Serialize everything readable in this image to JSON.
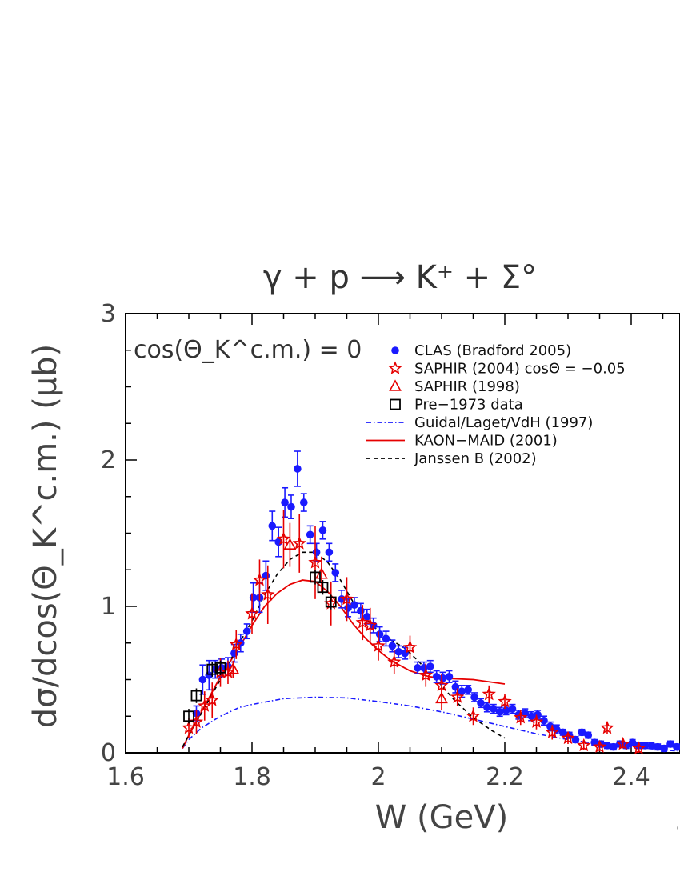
{
  "chart_data": {
    "type": "scatter",
    "title": "γ + p ⟶ K⁺ + Σ°",
    "xlabel": "W (GeV)",
    "ylabel": "dσ/dcos(Θ_K^c.m.) (μb)",
    "xlim": [
      1.6,
      2.48
    ],
    "ylim": [
      0,
      3
    ],
    "x_ticks": [
      1.6,
      1.8,
      2.0,
      2.2,
      2.4
    ],
    "x_tick_labels": [
      "1.6",
      "1.8",
      "2",
      "2.2",
      "2.4"
    ],
    "y_ticks": [
      0,
      1,
      2,
      3
    ],
    "y_tick_labels": [
      "0",
      "1",
      "2",
      "3"
    ],
    "annotation": "cos(Θ_K^c.m.) = 0",
    "legend_position": "top-right",
    "series": [
      {
        "name": "CLAS (Bradford 2005)",
        "marker": "filled-circle",
        "color": "#1a1aff",
        "points": [
          [
            1.712,
            0.27,
            0.05
          ],
          [
            1.722,
            0.5,
            0.1
          ],
          [
            1.732,
            0.53,
            0.1
          ],
          [
            1.742,
            0.57,
            0.06
          ],
          [
            1.752,
            0.58,
            0.06
          ],
          [
            1.762,
            0.59,
            0.06
          ],
          [
            1.772,
            0.68,
            0.06
          ],
          [
            1.782,
            0.75,
            0.06
          ],
          [
            1.792,
            0.83,
            0.05
          ],
          [
            1.802,
            1.06,
            0.1
          ],
          [
            1.812,
            1.06,
            0.1
          ],
          [
            1.822,
            1.21,
            0.1
          ],
          [
            1.832,
            1.55,
            0.1
          ],
          [
            1.842,
            1.44,
            0.1
          ],
          [
            1.852,
            1.71,
            0.1
          ],
          [
            1.862,
            1.68,
            0.08
          ],
          [
            1.872,
            1.94,
            0.12
          ],
          [
            1.882,
            1.71,
            0.06
          ],
          [
            1.892,
            1.49,
            0.06
          ],
          [
            1.902,
            1.37,
            0.06
          ],
          [
            1.912,
            1.52,
            0.06
          ],
          [
            1.922,
            1.37,
            0.06
          ],
          [
            1.932,
            1.23,
            0.06
          ],
          [
            1.942,
            1.05,
            0.06
          ],
          [
            1.952,
            0.99,
            0.06
          ],
          [
            1.962,
            1.01,
            0.05
          ],
          [
            1.972,
            0.97,
            0.05
          ],
          [
            1.982,
            0.93,
            0.05
          ],
          [
            1.992,
            0.87,
            0.05
          ],
          [
            2.002,
            0.81,
            0.05
          ],
          [
            2.012,
            0.78,
            0.05
          ],
          [
            2.022,
            0.73,
            0.04
          ],
          [
            2.032,
            0.69,
            0.04
          ],
          [
            2.042,
            0.68,
            0.04
          ],
          [
            2.062,
            0.58,
            0.04
          ],
          [
            2.072,
            0.58,
            0.04
          ],
          [
            2.082,
            0.59,
            0.04
          ],
          [
            2.092,
            0.52,
            0.04
          ],
          [
            2.102,
            0.51,
            0.04
          ],
          [
            2.112,
            0.52,
            0.04
          ],
          [
            2.122,
            0.45,
            0.04
          ],
          [
            2.132,
            0.42,
            0.04
          ],
          [
            2.142,
            0.43,
            0.03
          ],
          [
            2.152,
            0.38,
            0.03
          ],
          [
            2.162,
            0.34,
            0.03
          ],
          [
            2.172,
            0.31,
            0.03
          ],
          [
            2.182,
            0.3,
            0.03
          ],
          [
            2.192,
            0.28,
            0.03
          ],
          [
            2.202,
            0.29,
            0.03
          ],
          [
            2.212,
            0.3,
            0.03
          ],
          [
            2.222,
            0.26,
            0.03
          ],
          [
            2.232,
            0.27,
            0.03
          ],
          [
            2.242,
            0.25,
            0.03
          ],
          [
            2.252,
            0.26,
            0.03
          ],
          [
            2.262,
            0.22,
            0.03
          ],
          [
            2.272,
            0.18,
            0.03
          ],
          [
            2.282,
            0.16,
            0.03
          ],
          [
            2.292,
            0.14,
            0.02
          ],
          [
            2.302,
            0.12,
            0.02
          ],
          [
            2.312,
            0.09,
            0.02
          ],
          [
            2.322,
            0.14,
            0.02
          ],
          [
            2.332,
            0.12,
            0.02
          ],
          [
            2.342,
            0.07,
            0.02
          ],
          [
            2.352,
            0.06,
            0.02
          ],
          [
            2.362,
            0.05,
            0.02
          ],
          [
            2.372,
            0.04,
            0.02
          ],
          [
            2.382,
            0.06,
            0.02
          ],
          [
            2.392,
            0.05,
            0.02
          ],
          [
            2.402,
            0.07,
            0.02
          ],
          [
            2.412,
            0.05,
            0.02
          ],
          [
            2.422,
            0.05,
            0.02
          ],
          [
            2.432,
            0.05,
            0.02
          ],
          [
            2.442,
            0.04,
            0.02
          ],
          [
            2.452,
            0.03,
            0.02
          ],
          [
            2.462,
            0.06,
            0.02
          ],
          [
            2.472,
            0.04,
            0.02
          ]
        ]
      },
      {
        "name": "SAPHIR (2004) cosΘ = −0.05",
        "marker": "open-star",
        "color": "#e60000",
        "points": [
          [
            1.7,
            0.17,
            0.07
          ],
          [
            1.712,
            0.21,
            0.08
          ],
          [
            1.725,
            0.32,
            0.1
          ],
          [
            1.737,
            0.36,
            0.12
          ],
          [
            1.75,
            0.55,
            0.1
          ],
          [
            1.762,
            0.55,
            0.08
          ],
          [
            1.775,
            0.74,
            0.1
          ],
          [
            1.8,
            0.95,
            0.14
          ],
          [
            1.812,
            1.18,
            0.14
          ],
          [
            1.825,
            1.08,
            0.2
          ],
          [
            1.85,
            1.46,
            0.2
          ],
          [
            1.875,
            1.43,
            0.2
          ],
          [
            1.9,
            1.3,
            0.25
          ],
          [
            1.925,
            1.02,
            0.15
          ],
          [
            1.95,
            1.05,
            0.15
          ],
          [
            1.975,
            0.89,
            0.12
          ],
          [
            1.987,
            0.87,
            0.12
          ],
          [
            2.0,
            0.73,
            0.1
          ],
          [
            2.025,
            0.62,
            0.08
          ],
          [
            2.05,
            0.72,
            0.08
          ],
          [
            2.075,
            0.53,
            0.08
          ],
          [
            2.1,
            0.46,
            0.08
          ],
          [
            2.125,
            0.38,
            0.06
          ],
          [
            2.15,
            0.25,
            0.06
          ],
          [
            2.175,
            0.4,
            0.06
          ],
          [
            2.2,
            0.35,
            0.05
          ],
          [
            2.225,
            0.24,
            0.05
          ],
          [
            2.25,
            0.21,
            0.05
          ],
          [
            2.275,
            0.14,
            0.05
          ],
          [
            2.3,
            0.1,
            0.04
          ],
          [
            2.325,
            0.05,
            0.03
          ],
          [
            2.35,
            0.04,
            0.03
          ],
          [
            2.362,
            0.17,
            0.04
          ],
          [
            2.387,
            0.06,
            0.03
          ],
          [
            2.412,
            0.03,
            0.03
          ]
        ]
      },
      {
        "name": "SAPHIR (1998)",
        "marker": "open-triangle",
        "color": "#e60000",
        "points": [
          [
            1.77,
            0.57,
            0.06
          ],
          [
            1.86,
            1.42,
            0.15
          ],
          [
            1.91,
            1.22,
            0.12
          ],
          [
            2.1,
            0.37,
            0.08
          ]
        ]
      },
      {
        "name": "Pre−1973 data",
        "marker": "open-square",
        "color": "#000000",
        "points": [
          [
            1.7,
            0.25,
            0.05
          ],
          [
            1.712,
            0.39,
            0.05
          ],
          [
            1.737,
            0.57,
            0.05
          ],
          [
            1.75,
            0.58,
            0.05
          ],
          [
            1.9,
            1.2,
            0.05
          ],
          [
            1.912,
            1.13,
            0.05
          ],
          [
            1.925,
            1.03,
            0.05
          ]
        ]
      },
      {
        "name": "Guidal/Laget/VdH (1997)",
        "line": "dash-dot",
        "color": "#1a1aff",
        "points": [
          [
            1.69,
            0.03
          ],
          [
            1.7,
            0.09
          ],
          [
            1.72,
            0.17
          ],
          [
            1.75,
            0.25
          ],
          [
            1.78,
            0.31
          ],
          [
            1.8,
            0.33
          ],
          [
            1.85,
            0.37
          ],
          [
            1.9,
            0.38
          ],
          [
            1.95,
            0.375
          ],
          [
            2.0,
            0.35
          ],
          [
            2.05,
            0.32
          ],
          [
            2.1,
            0.28
          ],
          [
            2.15,
            0.23
          ],
          [
            2.2,
            0.18
          ],
          [
            2.25,
            0.13
          ],
          [
            2.3,
            0.09
          ],
          [
            2.35,
            0.06
          ],
          [
            2.4,
            0.04
          ],
          [
            2.45,
            0.02
          ],
          [
            2.48,
            0.01
          ]
        ]
      },
      {
        "name": "KAON−MAID (2001)",
        "line": "solid",
        "color": "#e60000",
        "points": [
          [
            1.69,
            0.03
          ],
          [
            1.7,
            0.12
          ],
          [
            1.72,
            0.28
          ],
          [
            1.75,
            0.52
          ],
          [
            1.78,
            0.72
          ],
          [
            1.8,
            0.87
          ],
          [
            1.82,
            1.0
          ],
          [
            1.84,
            1.09
          ],
          [
            1.86,
            1.15
          ],
          [
            1.88,
            1.18
          ],
          [
            1.9,
            1.17
          ],
          [
            1.92,
            1.1
          ],
          [
            1.94,
            1.0
          ],
          [
            1.96,
            0.88
          ],
          [
            1.98,
            0.78
          ],
          [
            2.0,
            0.7
          ],
          [
            2.02,
            0.63
          ],
          [
            2.05,
            0.56
          ],
          [
            2.08,
            0.52
          ],
          [
            2.1,
            0.51
          ],
          [
            2.15,
            0.5
          ],
          [
            2.2,
            0.47
          ]
        ]
      },
      {
        "name": "Janssen B (2002)",
        "line": "dashed",
        "color": "#000000",
        "points": [
          [
            1.69,
            0.04
          ],
          [
            1.7,
            0.12
          ],
          [
            1.72,
            0.27
          ],
          [
            1.75,
            0.5
          ],
          [
            1.78,
            0.75
          ],
          [
            1.8,
            0.9
          ],
          [
            1.82,
            1.08
          ],
          [
            1.84,
            1.22
          ],
          [
            1.86,
            1.32
          ],
          [
            1.88,
            1.37
          ],
          [
            1.9,
            1.37
          ],
          [
            1.92,
            1.3
          ],
          [
            1.94,
            1.18
          ],
          [
            1.96,
            1.03
          ],
          [
            1.98,
            0.92
          ],
          [
            2.0,
            0.83
          ],
          [
            2.02,
            0.77
          ],
          [
            2.04,
            0.72
          ],
          [
            2.06,
            0.64
          ],
          [
            2.08,
            0.55
          ],
          [
            2.1,
            0.46
          ],
          [
            2.12,
            0.36
          ],
          [
            2.15,
            0.24
          ],
          [
            2.18,
            0.15
          ],
          [
            2.2,
            0.1
          ]
        ]
      }
    ]
  }
}
